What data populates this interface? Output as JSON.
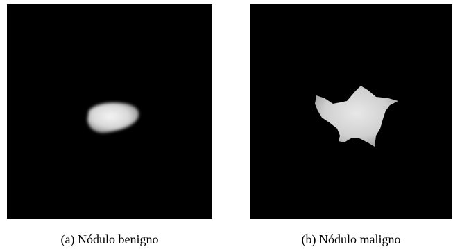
{
  "figures": [
    {
      "caption": "(a) Nódulo benigno"
    },
    {
      "caption": "(b) Nódulo maligno"
    }
  ]
}
